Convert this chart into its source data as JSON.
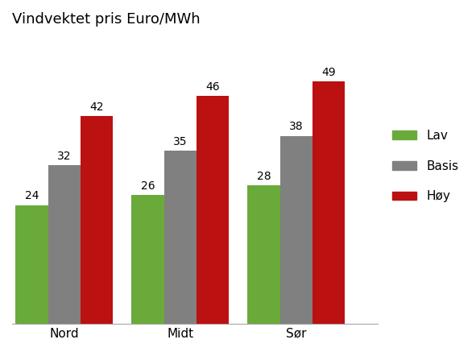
{
  "title": "Vindvektet pris Euro/MWh",
  "categories": [
    "Nord",
    "Midt",
    "Sør"
  ],
  "series": {
    "Lav": [
      24,
      26,
      28
    ],
    "Basis": [
      32,
      35,
      38
    ],
    "Høy": [
      42,
      46,
      49
    ]
  },
  "colors": {
    "Lav": "#6aaa3a",
    "Basis": "#808080",
    "Høy": "#bb1111"
  },
  "ylim": [
    0,
    58
  ],
  "bar_width": 0.28,
  "title_fontsize": 13,
  "label_fontsize": 10,
  "tick_fontsize": 11,
  "legend_fontsize": 11,
  "background_color": "#ffffff"
}
